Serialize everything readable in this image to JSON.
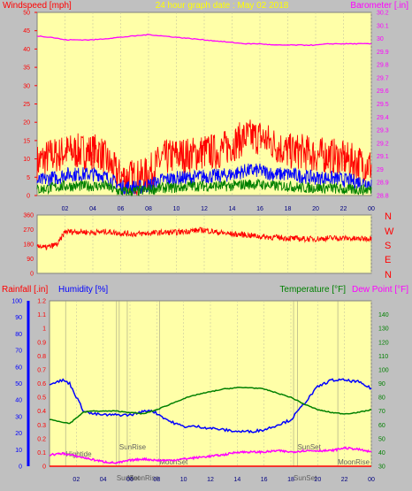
{
  "header": {
    "windspeed_label": "Windspeed [mph]",
    "graph_date": "24 hour graph date : May 02 2018",
    "barometer_label": "Barometer [.in]"
  },
  "wind_dir_letters": [
    "N",
    "W",
    "S",
    "E",
    "N"
  ],
  "bottom_header": {
    "rainfall_label": "Rainfall [.in]",
    "humidity_label": "Humidity [%]",
    "temperature_label": "Temperature [°F]",
    "dewpoint_label": "Dew Point [°F]"
  },
  "colors": {
    "plot_bg": "#ffffa8",
    "frame_bg": "#c0c0c0",
    "wind_max": "#ff0000",
    "wind_avg": "#0000ff",
    "wind_min": "#008000",
    "barometer": "#ff00ff",
    "direction": "#ff0000",
    "humidity": "#0000ff",
    "temperature": "#008000",
    "dewpoint": "#ff00ff",
    "rainfall": "#ff0000"
  },
  "chart_data": [
    {
      "type": "line",
      "name": "wind-and-barometer",
      "xticks": [
        "02",
        "04",
        "06",
        "08",
        "10",
        "12",
        "14",
        "16",
        "18",
        "20",
        "22",
        "00"
      ],
      "xlim_hours": [
        0,
        24
      ],
      "y_left": {
        "label": "Windspeed [mph]",
        "ylim": [
          0,
          50
        ],
        "ticks": [
          0,
          5,
          10,
          15,
          20,
          25,
          30,
          35,
          40,
          45,
          50
        ]
      },
      "y_right": {
        "label": "Barometer [.in]",
        "ylim": [
          28.8,
          30.2
        ],
        "ticks": [
          "28.8",
          "28.9",
          "29",
          "29.1",
          "29.2",
          "29.3",
          "29.4",
          "29.5",
          "29.6",
          "29.7",
          "29.8",
          "29.9",
          "30",
          "30.1",
          "30.2"
        ]
      },
      "series": [
        {
          "key": "gust",
          "axis": "left",
          "style": "noisy",
          "x": [
            0,
            1,
            1.5,
            2,
            3,
            4,
            4.5,
            5.5,
            6,
            7,
            7.5,
            8,
            9,
            10,
            11,
            12,
            13,
            14,
            15,
            16,
            17,
            18,
            19,
            20,
            21,
            22,
            23,
            24
          ],
          "y": [
            7,
            9,
            9,
            10,
            10,
            10,
            10,
            5,
            3,
            3,
            3,
            4,
            8,
            9,
            9,
            10,
            10,
            12,
            14,
            14,
            12,
            10,
            10,
            9,
            9,
            8,
            7,
            6
          ],
          "amp": 5
        },
        {
          "key": "avg",
          "axis": "left",
          "style": "noisy",
          "x": [
            0,
            1,
            1.5,
            2,
            3,
            4,
            4.5,
            5.5,
            6,
            7,
            7.5,
            8,
            9,
            10,
            11,
            12,
            13,
            14,
            15,
            16,
            17,
            18,
            19,
            20,
            21,
            22,
            23,
            24
          ],
          "y": [
            3,
            4,
            4,
            5,
            5,
            5,
            5,
            3,
            1.5,
            1.5,
            1.5,
            2,
            3.5,
            4,
            4,
            4.5,
            4.5,
            5,
            6,
            6,
            5,
            5,
            4.5,
            4,
            4,
            3.5,
            3,
            2.5
          ],
          "amp": 2
        },
        {
          "key": "low",
          "axis": "left",
          "style": "noisy",
          "x": [
            0,
            1,
            2,
            3,
            4,
            5,
            5.5,
            6,
            7,
            8,
            9,
            10,
            11,
            12,
            13,
            14,
            15,
            16,
            17,
            18,
            19,
            20,
            21,
            22,
            23,
            24
          ],
          "y": [
            1,
            1.5,
            2,
            2,
            2,
            2,
            1,
            0.5,
            0.5,
            1,
            1.5,
            1.5,
            2,
            2,
            2,
            2,
            2.5,
            2.5,
            2,
            2,
            1.5,
            1.5,
            1.5,
            1,
            1,
            1
          ],
          "amp": 1.5
        },
        {
          "key": "barometer",
          "axis": "right",
          "style": "smooth",
          "x": [
            0,
            1,
            2,
            3,
            4,
            5,
            6,
            7,
            8,
            9,
            10,
            11,
            12,
            13,
            14,
            15,
            16,
            17,
            18,
            19,
            20,
            21,
            22,
            23,
            24
          ],
          "y": [
            30.02,
            30.01,
            29.99,
            29.99,
            29.99,
            30.0,
            30.01,
            30.02,
            30.03,
            30.02,
            30.01,
            30.0,
            29.99,
            29.98,
            29.97,
            29.96,
            29.96,
            29.95,
            29.95,
            29.95,
            29.95,
            29.96,
            29.96,
            29.96,
            29.96
          ],
          "amp": 0.003
        }
      ]
    },
    {
      "type": "line",
      "name": "wind-direction",
      "xlim_hours": [
        0,
        24
      ],
      "y_left": {
        "ylim": [
          0,
          360
        ],
        "ticks": [
          0,
          90,
          180,
          270,
          360
        ]
      },
      "series": [
        {
          "key": "direction",
          "axis": "left",
          "style": "noisy",
          "x": [
            0,
            0.5,
            1,
            1.5,
            2,
            3,
            4,
            5,
            6,
            7,
            8,
            9,
            10,
            11,
            12,
            13,
            14,
            15,
            16,
            17,
            18,
            19,
            20,
            21,
            22,
            23,
            24
          ],
          "y": [
            170,
            150,
            160,
            175,
            250,
            250,
            245,
            250,
            240,
            235,
            240,
            245,
            245,
            255,
            260,
            245,
            235,
            230,
            220,
            215,
            210,
            205,
            205,
            210,
            210,
            205,
            210
          ],
          "amp": 18
        }
      ]
    },
    {
      "type": "line",
      "name": "humidity-temperature",
      "xlim_hours": [
        0,
        24
      ],
      "y_humidity": {
        "label": "Humidity [%]",
        "ylim": [
          0,
          100
        ],
        "ticks": [
          0,
          10,
          20,
          30,
          40,
          50,
          60,
          70,
          80,
          90,
          100
        ]
      },
      "y_rainfall": {
        "label": "Rainfall [.in]",
        "ylim": [
          0,
          1.2
        ],
        "ticks": [
          "0",
          "0.1",
          "0.2",
          "0.3",
          "0.4",
          "0.5",
          "0.6",
          "0.7",
          "0.8",
          "0.9",
          "1",
          "1.1",
          "1.2"
        ]
      },
      "y_temperature": {
        "label": "Temperature [°F]",
        "ylim": [
          30,
          150
        ],
        "ticks": [
          30,
          40,
          50,
          60,
          70,
          80,
          90,
          100,
          110,
          120,
          130,
          140
        ]
      },
      "events": [
        {
          "label": "Hightide",
          "hour": 1.2
        },
        {
          "label": "SunRise",
          "hour": 5.2
        },
        {
          "label": "SunSet",
          "hour": 5.0
        },
        {
          "label": "MoonRise",
          "hour": 5.8
        },
        {
          "label": "MoonSet",
          "hour": 8.2
        },
        {
          "label": "SunSet",
          "hour": 18.5
        },
        {
          "label": "SunSet",
          "hour": 18.2
        },
        {
          "label": "MoonRise",
          "hour": 21.5
        }
      ],
      "series": [
        {
          "key": "humidity",
          "axis": "humidity",
          "style": "smooth",
          "x": [
            0,
            0.5,
            1,
            1.5,
            2,
            2.5,
            3,
            4,
            5,
            6,
            7,
            7.5,
            8,
            9,
            10,
            11,
            12,
            13,
            14,
            15,
            16,
            17,
            18,
            19,
            20,
            21,
            22,
            23,
            24
          ],
          "y": [
            50,
            51,
            52,
            50,
            42,
            34,
            32,
            31,
            31,
            31,
            33,
            34,
            32,
            27,
            24,
            24,
            23,
            22,
            21,
            21,
            22,
            25,
            28,
            38,
            48,
            52,
            52,
            51,
            47
          ],
          "amp": 0.8
        },
        {
          "key": "temperature",
          "axis": "temperature",
          "style": "smooth",
          "x": [
            0,
            1,
            1.5,
            2,
            2.5,
            3,
            4,
            5,
            6,
            7,
            8,
            9,
            10,
            11,
            12,
            13,
            14,
            15,
            16,
            17,
            18,
            19,
            20,
            21,
            22,
            23,
            24
          ],
          "y": [
            64,
            62,
            61,
            65,
            69,
            70,
            70,
            70,
            69,
            68,
            71,
            75,
            79,
            82,
            84,
            86,
            87,
            87,
            86,
            83,
            80,
            75,
            71,
            69,
            68,
            69,
            71
          ],
          "amp": 0.3
        },
        {
          "key": "dewpoint",
          "axis": "temperature",
          "style": "noisy",
          "x": [
            0,
            1,
            2,
            3,
            4,
            5,
            6,
            7,
            8,
            9,
            10,
            11,
            12,
            13,
            14,
            15,
            16,
            17,
            18,
            19,
            20,
            21,
            22,
            23,
            24
          ],
          "y": [
            38,
            39,
            37,
            35,
            33,
            32,
            34,
            35,
            34,
            34,
            35,
            36,
            37,
            38,
            40,
            40,
            40,
            41,
            40,
            41,
            41,
            41,
            43,
            42,
            40
          ],
          "amp": 0.7
        },
        {
          "key": "rainfall",
          "axis": "rainfall",
          "style": "step",
          "x": [
            0,
            24
          ],
          "y": [
            0,
            0
          ],
          "amp": 0
        }
      ]
    }
  ]
}
